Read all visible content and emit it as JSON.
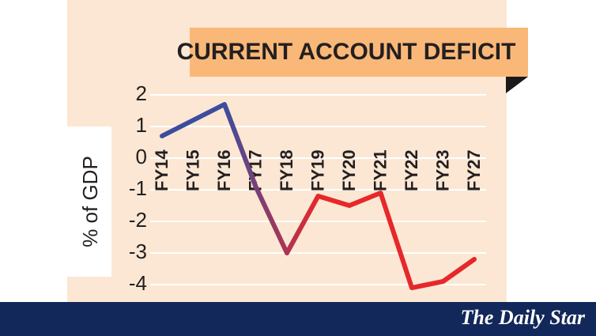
{
  "chart_data": {
    "type": "line",
    "title": "CURRENT ACCOUNT DEFICIT",
    "y_label": "% of GDP",
    "categories": [
      "FY14",
      "FY15",
      "FY16",
      "FY17",
      "FY18",
      "FY19",
      "FY20",
      "FY21",
      "FY22",
      "FY23",
      "FY27"
    ],
    "series": [
      {
        "colors": [
          "#3d4d9e",
          "#e6282b"
        ],
        "values": [
          0.7,
          1.2,
          1.7,
          -0.9,
          -3.0,
          -1.2,
          -1.5,
          -1.1,
          -4.1,
          -3.9,
          -3.2
        ]
      }
    ],
    "ylim": [
      -4.5,
      2.5
    ],
    "yticks": [
      2,
      1,
      0,
      -1,
      -2,
      -3,
      -4
    ],
    "grid": true
  },
  "footer": {
    "brand": "The Daily Star"
  }
}
